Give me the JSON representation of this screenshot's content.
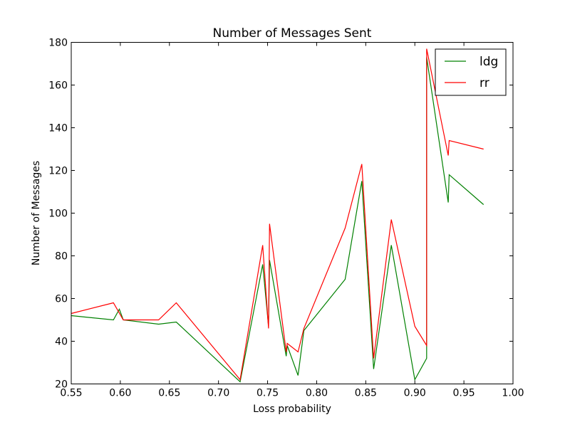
{
  "chart_data": {
    "type": "line",
    "title": "Number of Messages Sent",
    "xlabel": "Loss probability",
    "ylabel": "Number of Messages",
    "xlim": [
      0.55,
      1.0
    ],
    "ylim": [
      20,
      180
    ],
    "xticks": [
      "0.55",
      "0.60",
      "0.65",
      "0.70",
      "0.75",
      "0.80",
      "0.85",
      "0.90",
      "0.95",
      "1.00"
    ],
    "yticks": [
      "20",
      "40",
      "60",
      "80",
      "100",
      "120",
      "140",
      "160",
      "180"
    ],
    "legend_position": "top-right",
    "grid": false,
    "series": [
      {
        "name": "ldg",
        "color": "#008000",
        "points": [
          [
            0.55,
            52
          ],
          [
            0.593,
            50
          ],
          [
            0.599,
            55
          ],
          [
            0.603,
            50
          ],
          [
            0.639,
            48
          ],
          [
            0.657,
            49
          ],
          [
            0.722,
            21
          ],
          [
            0.745,
            76
          ],
          [
            0.751,
            47
          ],
          [
            0.752,
            78
          ],
          [
            0.769,
            33
          ],
          [
            0.77,
            38
          ],
          [
            0.781,
            24
          ],
          [
            0.787,
            45
          ],
          [
            0.829,
            69
          ],
          [
            0.846,
            115
          ],
          [
            0.858,
            27
          ],
          [
            0.876,
            85
          ],
          [
            0.9,
            22
          ],
          [
            0.912,
            32
          ],
          [
            0.912,
            173
          ],
          [
            0.934,
            105
          ],
          [
            0.935,
            118
          ],
          [
            0.97,
            104
          ]
        ]
      },
      {
        "name": "rr",
        "color": "#ff0000",
        "points": [
          [
            0.55,
            53
          ],
          [
            0.593,
            58
          ],
          [
            0.603,
            50
          ],
          [
            0.639,
            50
          ],
          [
            0.657,
            58
          ],
          [
            0.722,
            22
          ],
          [
            0.745,
            85
          ],
          [
            0.751,
            46
          ],
          [
            0.752,
            95
          ],
          [
            0.769,
            35
          ],
          [
            0.77,
            39
          ],
          [
            0.781,
            35
          ],
          [
            0.787,
            46
          ],
          [
            0.829,
            93
          ],
          [
            0.846,
            123
          ],
          [
            0.858,
            32
          ],
          [
            0.876,
            97
          ],
          [
            0.9,
            47
          ],
          [
            0.912,
            38
          ],
          [
            0.912,
            177
          ],
          [
            0.934,
            127
          ],
          [
            0.935,
            134
          ],
          [
            0.97,
            130
          ]
        ]
      }
    ]
  }
}
